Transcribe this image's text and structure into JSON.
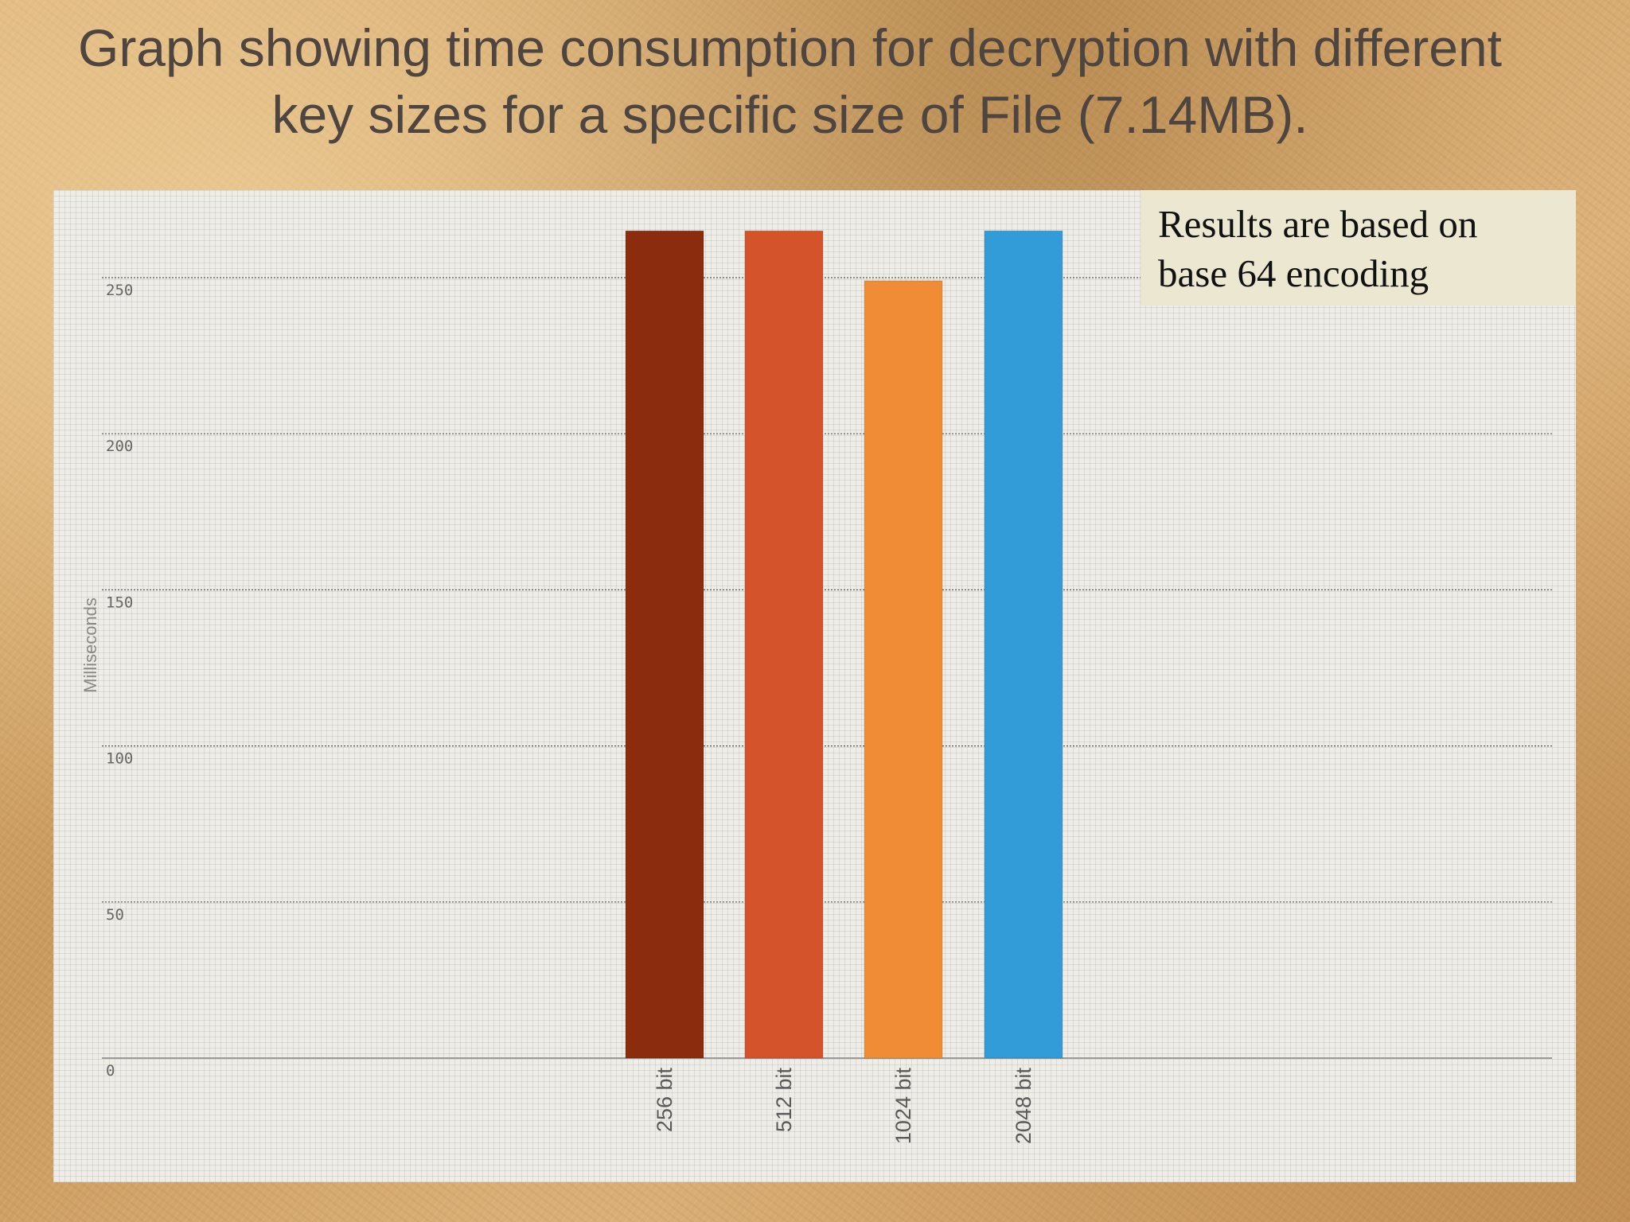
{
  "slide": {
    "title_line1": "Graph showing time consumption for decryption with different",
    "title_line2": "key sizes for a specific size of File (7.14MB)."
  },
  "note": {
    "line1": "Results are based on",
    "line2": "base 64 encoding"
  },
  "colors": {
    "bar_256": "#8b2c0e",
    "bar_512": "#d5532a",
    "bar_1024": "#f08c35",
    "bar_2048": "#319cd7",
    "gridline": "#555555",
    "axis": "#999999",
    "tick_label": "#666666"
  },
  "chart_data": {
    "type": "bar",
    "categories": [
      "256 bit",
      "512 bit",
      "1024 bit",
      "2048 bit"
    ],
    "values": [
      265,
      265,
      249,
      265
    ],
    "xlabel": "",
    "ylabel": "Milliseconds",
    "ylim": [
      0,
      278
    ],
    "yticks": [
      0,
      50,
      100,
      150,
      200,
      250
    ],
    "grid": true,
    "legend": "none"
  }
}
